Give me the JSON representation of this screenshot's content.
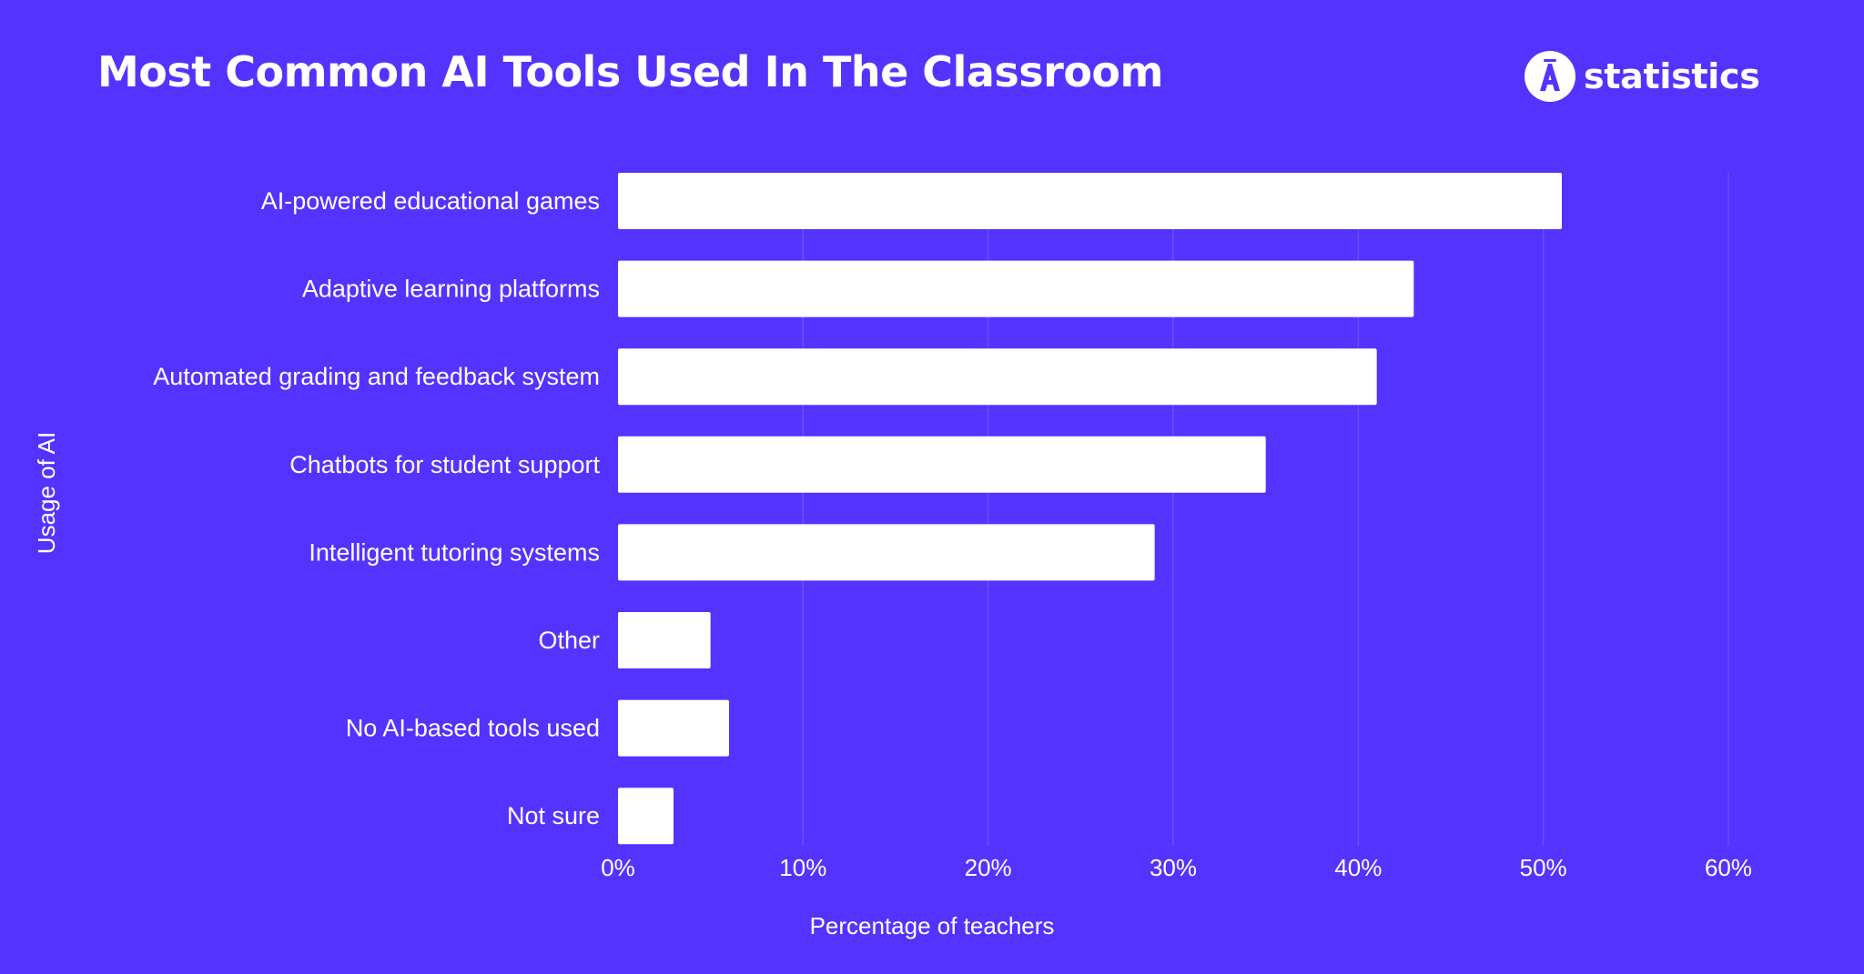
{
  "header": {
    "title": "Most Common AI Tools Used In The Classroom"
  },
  "brand": {
    "name": "statistics",
    "logo_letter": "A",
    "logo_icon": "brand-logo-icon"
  },
  "colors": {
    "background": "#5433ff",
    "bar": "#ffffff",
    "text": "#ffffff",
    "gridline": "#6a4dff"
  },
  "chart_data": {
    "type": "bar",
    "orientation": "horizontal",
    "title": "Most Common AI Tools Used In The Classroom",
    "xlabel": "Percentage of teachers",
    "ylabel": "Usage of AI",
    "categories": [
      "AI-powered educational games",
      "Adaptive learning platforms",
      "Automated grading and feedback system",
      "Chatbots for student support",
      "Intelligent tutoring systems",
      "Other",
      "No AI-based tools used",
      "Not sure"
    ],
    "values": [
      51,
      43,
      41,
      35,
      29,
      5,
      6,
      3
    ],
    "xlim": [
      0,
      60
    ],
    "ticks": [
      0,
      10,
      20,
      30,
      40,
      50,
      60
    ],
    "tick_labels": [
      "0%",
      "10%",
      "20%",
      "30%",
      "40%",
      "50%",
      "60%"
    ],
    "grid": true,
    "legend": false
  }
}
